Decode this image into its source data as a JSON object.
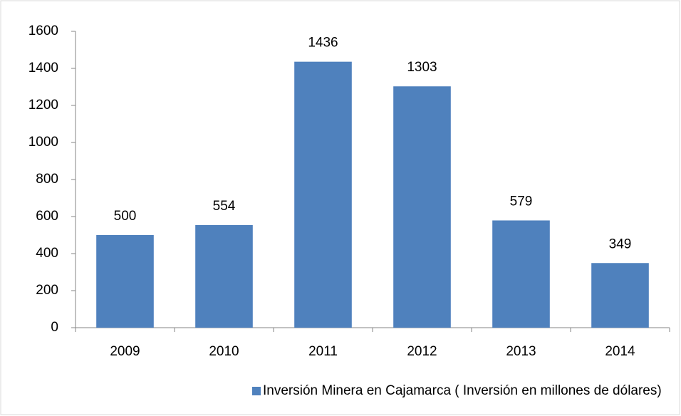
{
  "chart_data": {
    "type": "bar",
    "categories": [
      "2009",
      "2010",
      "2011",
      "2012",
      "2013",
      "2014"
    ],
    "series": [
      {
        "name": "Inversión Minera en Cajamarca ( Inversión en millones de dólares)",
        "color": "#4f81bd",
        "values": [
          500,
          554,
          1436,
          1303,
          579,
          349
        ]
      }
    ],
    "ylim": [
      0,
      1600
    ],
    "yticks": [
      0,
      200,
      400,
      600,
      800,
      1000,
      1200,
      1400,
      1600
    ],
    "grid": false,
    "legend": "bottom",
    "data_labels": true
  }
}
